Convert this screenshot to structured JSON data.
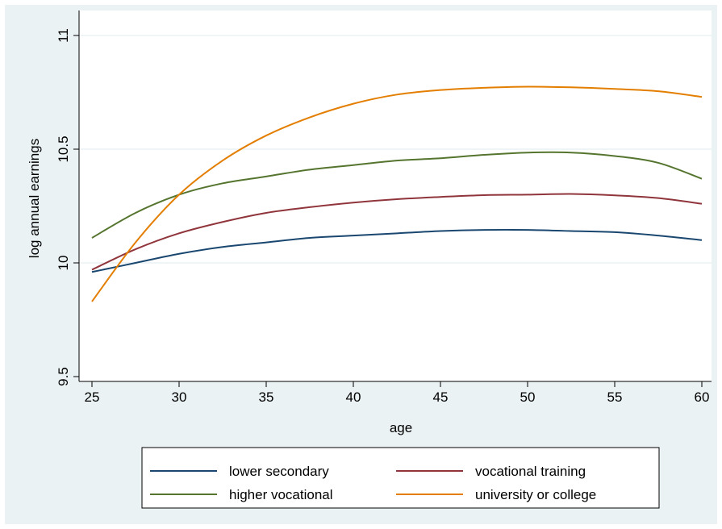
{
  "chart_data": {
    "type": "line",
    "xlabel": "age",
    "ylabel": "log annual earnings",
    "xlim": [
      25,
      60
    ],
    "ylim": [
      9.5,
      11
    ],
    "xticks": [
      25,
      30,
      35,
      40,
      45,
      50,
      55,
      60
    ],
    "yticks": [
      9.5,
      10,
      10.5,
      11
    ],
    "ytick_labels": [
      "9.5",
      "10",
      "10.5",
      "11"
    ],
    "grid": "horizontal",
    "legend_position": "bottom",
    "x": [
      25,
      27.5,
      30,
      32.5,
      35,
      37.5,
      40,
      42.5,
      45,
      47.5,
      50,
      52.5,
      55,
      57.5,
      60
    ],
    "series": [
      {
        "name": "lower secondary",
        "color": "#1a476f",
        "values": [
          9.96,
          10.0,
          10.04,
          10.07,
          10.09,
          10.11,
          10.12,
          10.13,
          10.14,
          10.145,
          10.145,
          10.14,
          10.135,
          10.12,
          10.1
        ]
      },
      {
        "name": "vocational training",
        "color": "#90353b",
        "values": [
          9.97,
          10.06,
          10.13,
          10.18,
          10.22,
          10.245,
          10.265,
          10.28,
          10.29,
          10.298,
          10.3,
          10.303,
          10.297,
          10.285,
          10.26
        ]
      },
      {
        "name": "higher vocational",
        "color": "#55752f",
        "values": [
          10.11,
          10.22,
          10.3,
          10.35,
          10.38,
          10.41,
          10.43,
          10.45,
          10.46,
          10.475,
          10.485,
          10.485,
          10.47,
          10.44,
          10.37
        ]
      },
      {
        "name": "university or college",
        "color": "#e37e00",
        "values": [
          9.83,
          10.09,
          10.3,
          10.45,
          10.56,
          10.64,
          10.7,
          10.74,
          10.76,
          10.77,
          10.775,
          10.772,
          10.765,
          10.755,
          10.73
        ]
      }
    ]
  }
}
